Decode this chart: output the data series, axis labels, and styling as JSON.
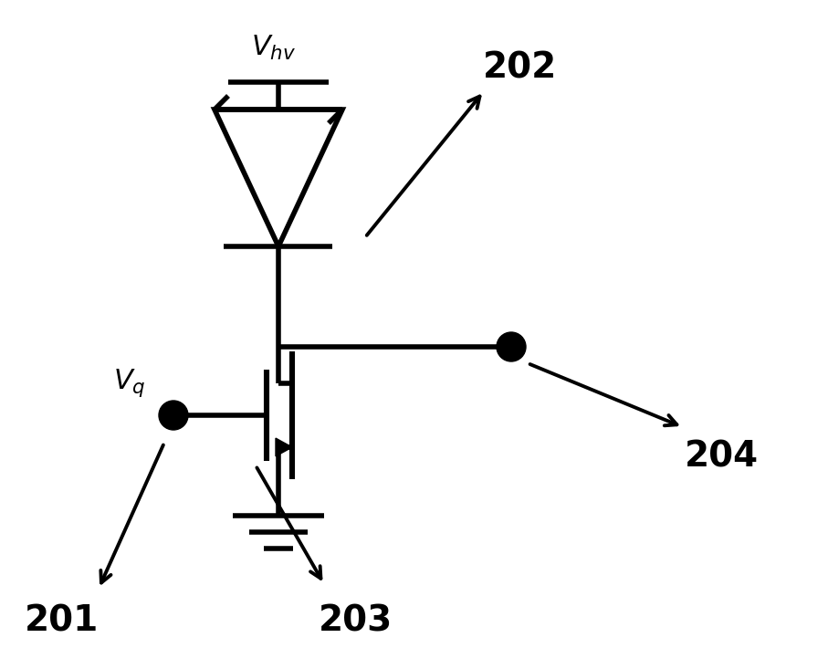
{
  "bg_color": "#ffffff",
  "line_color": "#000000",
  "lw": 4.0,
  "fig_width": 9.07,
  "fig_height": 7.33,
  "dpi": 100
}
